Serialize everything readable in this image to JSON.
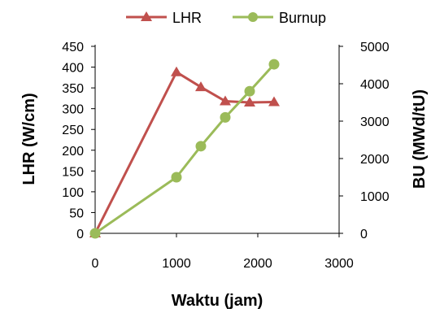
{
  "chart_data": {
    "type": "line",
    "xlabel": "Waktu (jam)",
    "ylabel_left": "LHR (W/cm)",
    "ylabel_right": "BU (MWd/tU)",
    "xlim": [
      0,
      3000
    ],
    "xticks": [
      "0",
      "1000",
      "2000",
      "3000"
    ],
    "ylim_left": [
      0,
      450
    ],
    "yticks_left": [
      "0",
      "50",
      "100",
      "150",
      "200",
      "250",
      "300",
      "350",
      "400",
      "450"
    ],
    "ylim_right": [
      0,
      5000
    ],
    "yticks_right": [
      "0",
      "1000",
      "2000",
      "3000",
      "4000",
      "5000"
    ],
    "grid": false,
    "legend_position": "top",
    "series": [
      {
        "name": "LHR",
        "axis": "left",
        "marker": "triangle",
        "color": "#c0504d",
        "x": [
          0,
          1000,
          1300,
          1600,
          1900,
          2200
        ],
        "y": [
          0,
          388,
          352,
          318,
          315,
          316
        ]
      },
      {
        "name": "Burnup",
        "axis": "right",
        "marker": "circle",
        "color": "#9bbb59",
        "x": [
          0,
          1000,
          1300,
          1600,
          1900,
          2200
        ],
        "y": [
          0,
          1500,
          2330,
          3100,
          3800,
          4520
        ]
      }
    ]
  }
}
